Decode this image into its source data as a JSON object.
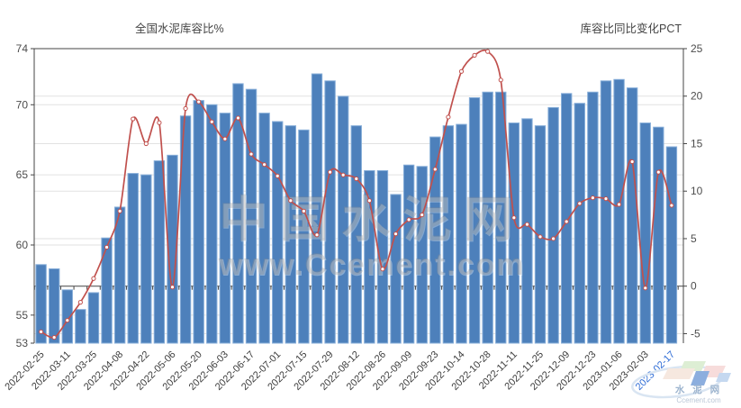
{
  "titles": {
    "left": "全国水泥库容比%",
    "right": "库容比同比变化PCT"
  },
  "watermark": {
    "line1": "中国水泥网",
    "line2": "www.Ccement.com"
  },
  "logo": {
    "cn": "水 泥 网",
    "en": "Ccement.com",
    "colors": {
      "cream": "#f6e8df",
      "green": "#ddeed4",
      "blue": "#8caede",
      "pink": "#f7dcdb",
      "smallblue": "#c5d8f0",
      "swoosh": "#d9e5f2",
      "text_cn": "#9eb5cf",
      "text_en": "#b9c6d6"
    }
  },
  "colors": {
    "bar": "#4d80bb",
    "bar_edge": "#87aed9",
    "line": "#c0504d",
    "marker_fill": "#ffffff",
    "axis": "#444444",
    "grid": "#e2e2e2",
    "tick_label": "#4d4d4d",
    "x_label": "#3d3d3d",
    "last_x_label": "#2e6cd6",
    "title": "#444444",
    "watermark": "#8a8a8a"
  },
  "chart_data": {
    "type": "bar+line dual-axis",
    "title_left_axis": "全国水泥库容比%",
    "title_right_axis": "库容比同比变化PCT",
    "x_labels": [
      "2022-02-25",
      "2022-03-11",
      "2022-03-25",
      "2022-04-08",
      "2022-04-22",
      "2022-05-06",
      "2022-05-20",
      "2022-06-03",
      "2022-06-17",
      "2022-07-01",
      "2022-07-15",
      "2022-07-29",
      "2022-08-12",
      "2022-08-26",
      "2022-09-09",
      "2022-09-23",
      "2022-10-14",
      "2022-10-28",
      "2022-11-11",
      "2022-11-25",
      "2022-12-09",
      "2022-12-23",
      "2023-01-06",
      "2023-02-03",
      "2023-02-17"
    ],
    "x_label_step": 2,
    "num_points": 49,
    "bar_series": {
      "name": "全国水泥库容比%",
      "axis": "left",
      "values": [
        58.6,
        58.3,
        56.8,
        55.4,
        56.6,
        60.5,
        62.7,
        65.1,
        65.0,
        66.0,
        66.4,
        69.2,
        70.3,
        70.0,
        69.4,
        71.5,
        71.1,
        69.4,
        68.8,
        68.5,
        68.2,
        72.2,
        71.7,
        70.6,
        68.5,
        65.3,
        65.3,
        63.6,
        65.7,
        65.6,
        67.7,
        68.5,
        68.6,
        70.5,
        70.9,
        70.9,
        68.7,
        69.0,
        68.5,
        69.8,
        70.8,
        70.1,
        70.9,
        71.7,
        71.8,
        71.2,
        68.7,
        68.4,
        67.0
      ]
    },
    "line_series": {
      "name": "库容比同比变化PCT",
      "axis": "right",
      "values": [
        -4.8,
        -5.4,
        -3.6,
        -1.7,
        0.8,
        4.1,
        7.9,
        17.6,
        15.0,
        17.2,
        -0.1,
        18.7,
        19.4,
        17.3,
        15.5,
        17.7,
        13.9,
        12.8,
        11.6,
        9.0,
        7.9,
        5.4,
        12.0,
        11.7,
        11.3,
        9.0,
        1.8,
        5.5,
        7.0,
        7.5,
        12.3,
        17.8,
        22.6,
        24.3,
        24.7,
        21.7,
        7.2,
        6.5,
        5.2,
        5.0,
        6.8,
        8.7,
        9.3,
        9.2,
        8.6,
        13.1,
        -0.2,
        12.0,
        8.5
      ]
    },
    "left_axis": {
      "ticks": [
        "74",
        "70",
        "65",
        "60",
        "55",
        "53"
      ],
      "tick_values": [
        74,
        70,
        65,
        60,
        55,
        53
      ],
      "min": 53,
      "max": 74
    },
    "right_axis": {
      "ticks": [
        "25",
        "20",
        "15",
        "10",
        "5",
        "0",
        "-5"
      ],
      "tick_values": [
        25,
        20,
        15,
        10,
        5,
        0,
        -5
      ],
      "min": -6,
      "max": 25
    },
    "grid": true,
    "legend_position": "none"
  }
}
